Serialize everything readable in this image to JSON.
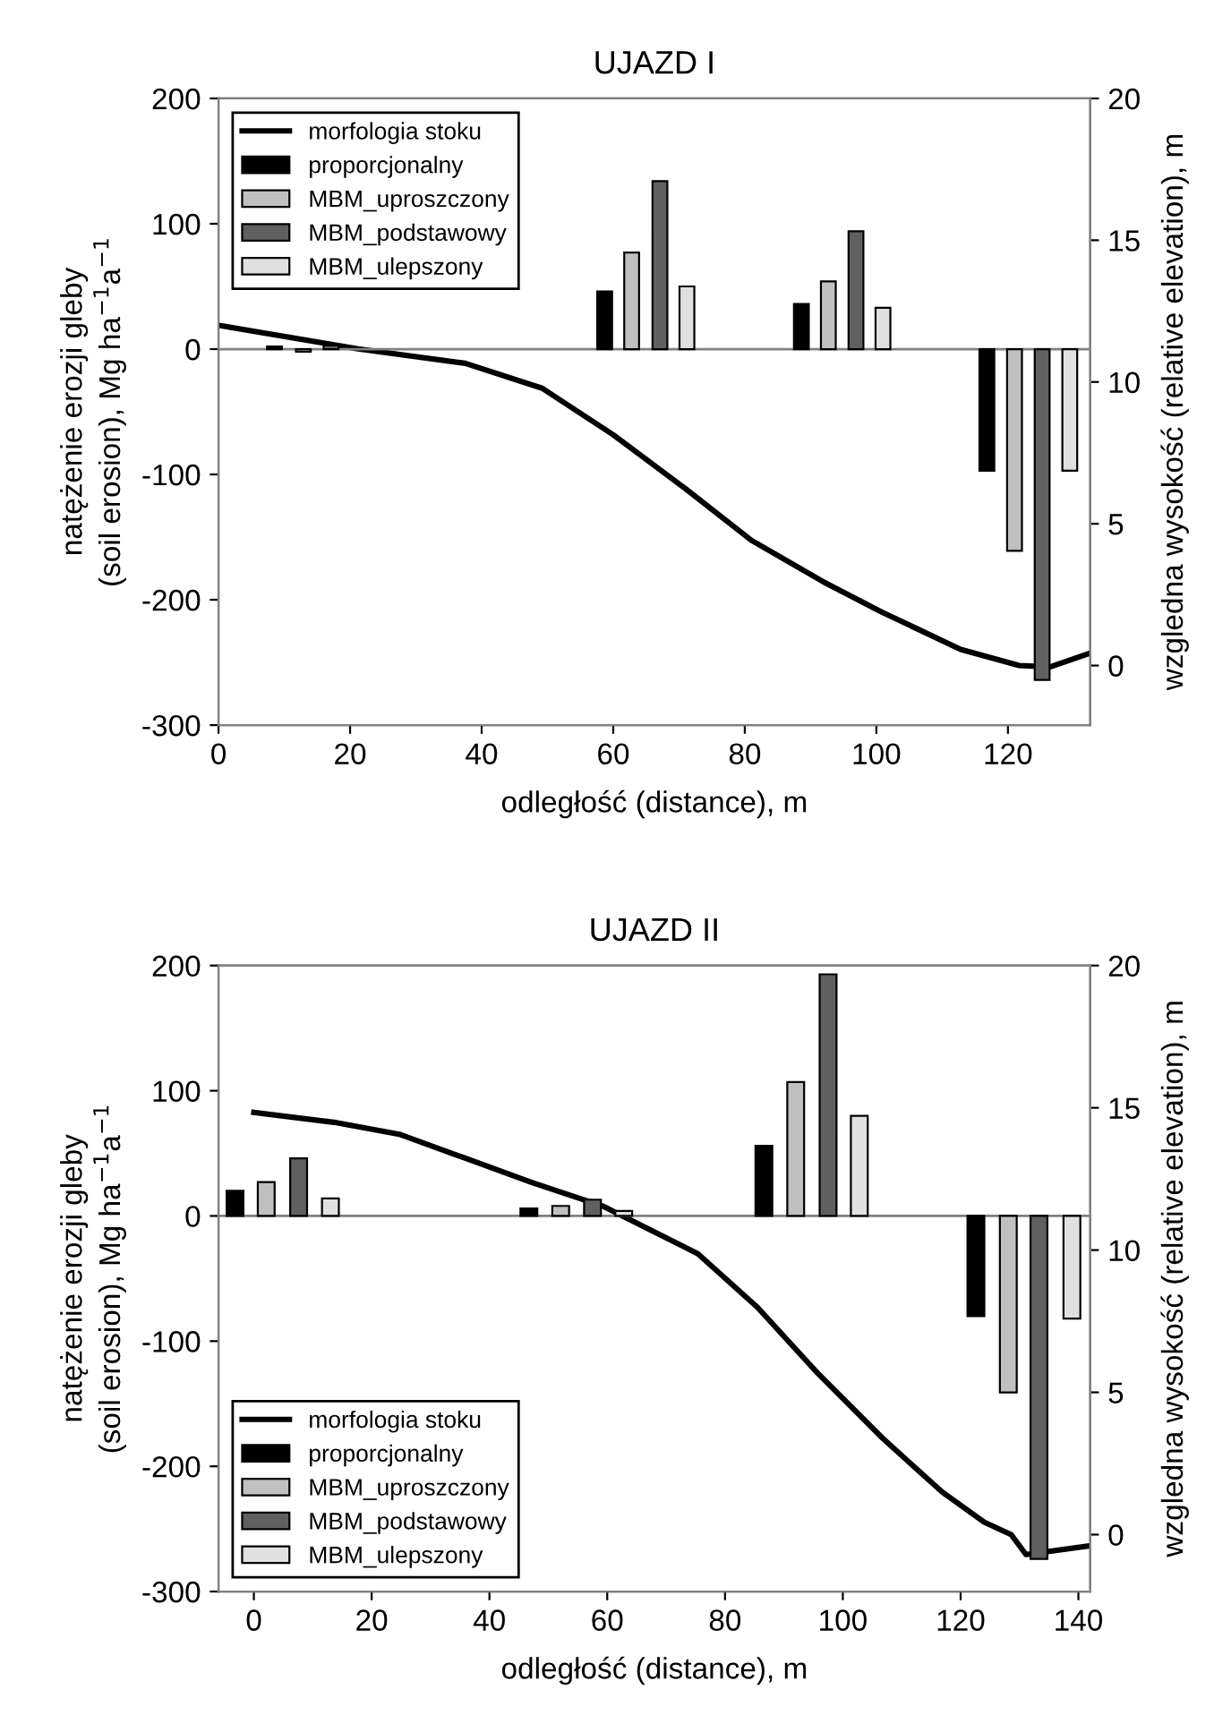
{
  "chart_data": [
    {
      "type": "bar",
      "title": "UJAZD I",
      "xlabel": "odległość (distance), m",
      "ylabel": "natężenie erozji gleby\n(soil erosion), Mg ha$^{−1}$a$^{−1}$",
      "y2label": "wzgledna wysokość (relative elevation), m",
      "ref_lines": [
        {
          "axis": "y",
          "value": 0,
          "color": "#808080"
        }
      ],
      "xlim": [
        0,
        132.5
      ],
      "xticks": [
        0,
        20,
        40,
        60,
        80,
        100,
        120
      ],
      "ylim": [
        -300,
        200
      ],
      "yticks": [
        -300,
        -200,
        -100,
        0,
        100,
        200
      ],
      "y2lim": [
        -2.1,
        20
      ],
      "y2ticks": [
        0,
        5,
        10,
        15,
        20
      ],
      "grid": false,
      "legend": "top left",
      "series": [
        {
          "name": "morfologia stoku",
          "type": "line",
          "axis": "y2",
          "color": "#000000",
          "x": [
            0,
            21.2,
            37.5,
            49.2,
            60,
            70.9,
            81,
            91.8,
            100.8,
            112.8,
            121.7,
            126.4,
            132.5
          ],
          "values": [
            12.0,
            11.17,
            10.66,
            9.78,
            8.14,
            6.25,
            4.42,
            2.97,
            1.89,
            0.57,
            0.0,
            -0.05,
            0.44
          ]
        },
        {
          "name": "proporcjonalny",
          "color": "#000000",
          "x": [
            8.5,
            58.7,
            88.6,
            116.8
          ],
          "values": [
            2,
            46,
            36,
            -97
          ]
        },
        {
          "name": "MBM_uproszczony",
          "color": "#c0c0c0",
          "x": [
            12.9,
            62.8,
            92.7,
            121.0
          ],
          "values": [
            -2,
            77,
            54,
            -161
          ]
        },
        {
          "name": "MBM_podstawowy",
          "color": "#606060",
          "x": [
            17.1,
            67.1,
            96.9,
            125.2
          ],
          "values": [
            3,
            134,
            94,
            -264
          ]
        },
        {
          "name": "MBM_ulepszony",
          "color": "#e0e0e0",
          "x": [
            71.2,
            101.0,
            129.4
          ],
          "values": [
            50,
            33,
            -97
          ]
        }
      ]
    },
    {
      "type": "bar",
      "title": "UJAZD II",
      "xlabel": "odległość (distance), m",
      "ylabel": "natężenie erozji gleby\n(soil erosion), Mg ha$^{−1}$a$^{−1}$",
      "y2label": "wzgledna wysokość (relative elevation), m",
      "ref_lines": [
        {
          "axis": "y",
          "value": 0,
          "color": "#808080"
        }
      ],
      "xlim": [
        -6,
        142
      ],
      "xticks": [
        0,
        20,
        40,
        60,
        80,
        100,
        120,
        140
      ],
      "ylim": [
        -300,
        200
      ],
      "yticks": [
        -300,
        -200,
        -100,
        0,
        100,
        200
      ],
      "y2lim": [
        -2.0,
        20
      ],
      "y2ticks": [
        0,
        5,
        10,
        15,
        20
      ],
      "grid": false,
      "legend": "bottom left",
      "series": [
        {
          "name": "morfologia stoku",
          "type": "line",
          "axis": "y2",
          "color": "#000000",
          "x": [
            0,
            13.6,
            24.7,
            35.9,
            47,
            59.2,
            67.3,
            75.4,
            85.5,
            95.7,
            106.8,
            116.9,
            124,
            128.6,
            131.1,
            141.7
          ],
          "values": [
            14.84,
            14.49,
            14.07,
            13.23,
            12.39,
            11.55,
            10.71,
            9.87,
            7.99,
            5.68,
            3.38,
            1.49,
            0.44,
            0.0,
            -0.7,
            -0.4
          ]
        },
        {
          "name": "proporcjonalny",
          "color": "#000000",
          "x": [
            -3.2,
            46.7,
            86.6,
            122.6
          ],
          "values": [
            20,
            6,
            56,
            -80
          ]
        },
        {
          "name": "MBM_uproszczony",
          "color": "#c0c0c0",
          "x": [
            2.1,
            52.1,
            92.0,
            128.1
          ],
          "values": [
            27,
            8,
            107,
            -141
          ]
        },
        {
          "name": "MBM_podstawowy",
          "color": "#606060",
          "x": [
            7.6,
            57.5,
            97.5,
            133.3
          ],
          "values": [
            46,
            13,
            193,
            -274
          ]
        },
        {
          "name": "MBM_ulepszony",
          "color": "#e0e0e0",
          "x": [
            13.0,
            62.8,
            102.8,
            138.9
          ],
          "values": [
            14,
            4,
            80,
            -82
          ]
        }
      ]
    }
  ]
}
